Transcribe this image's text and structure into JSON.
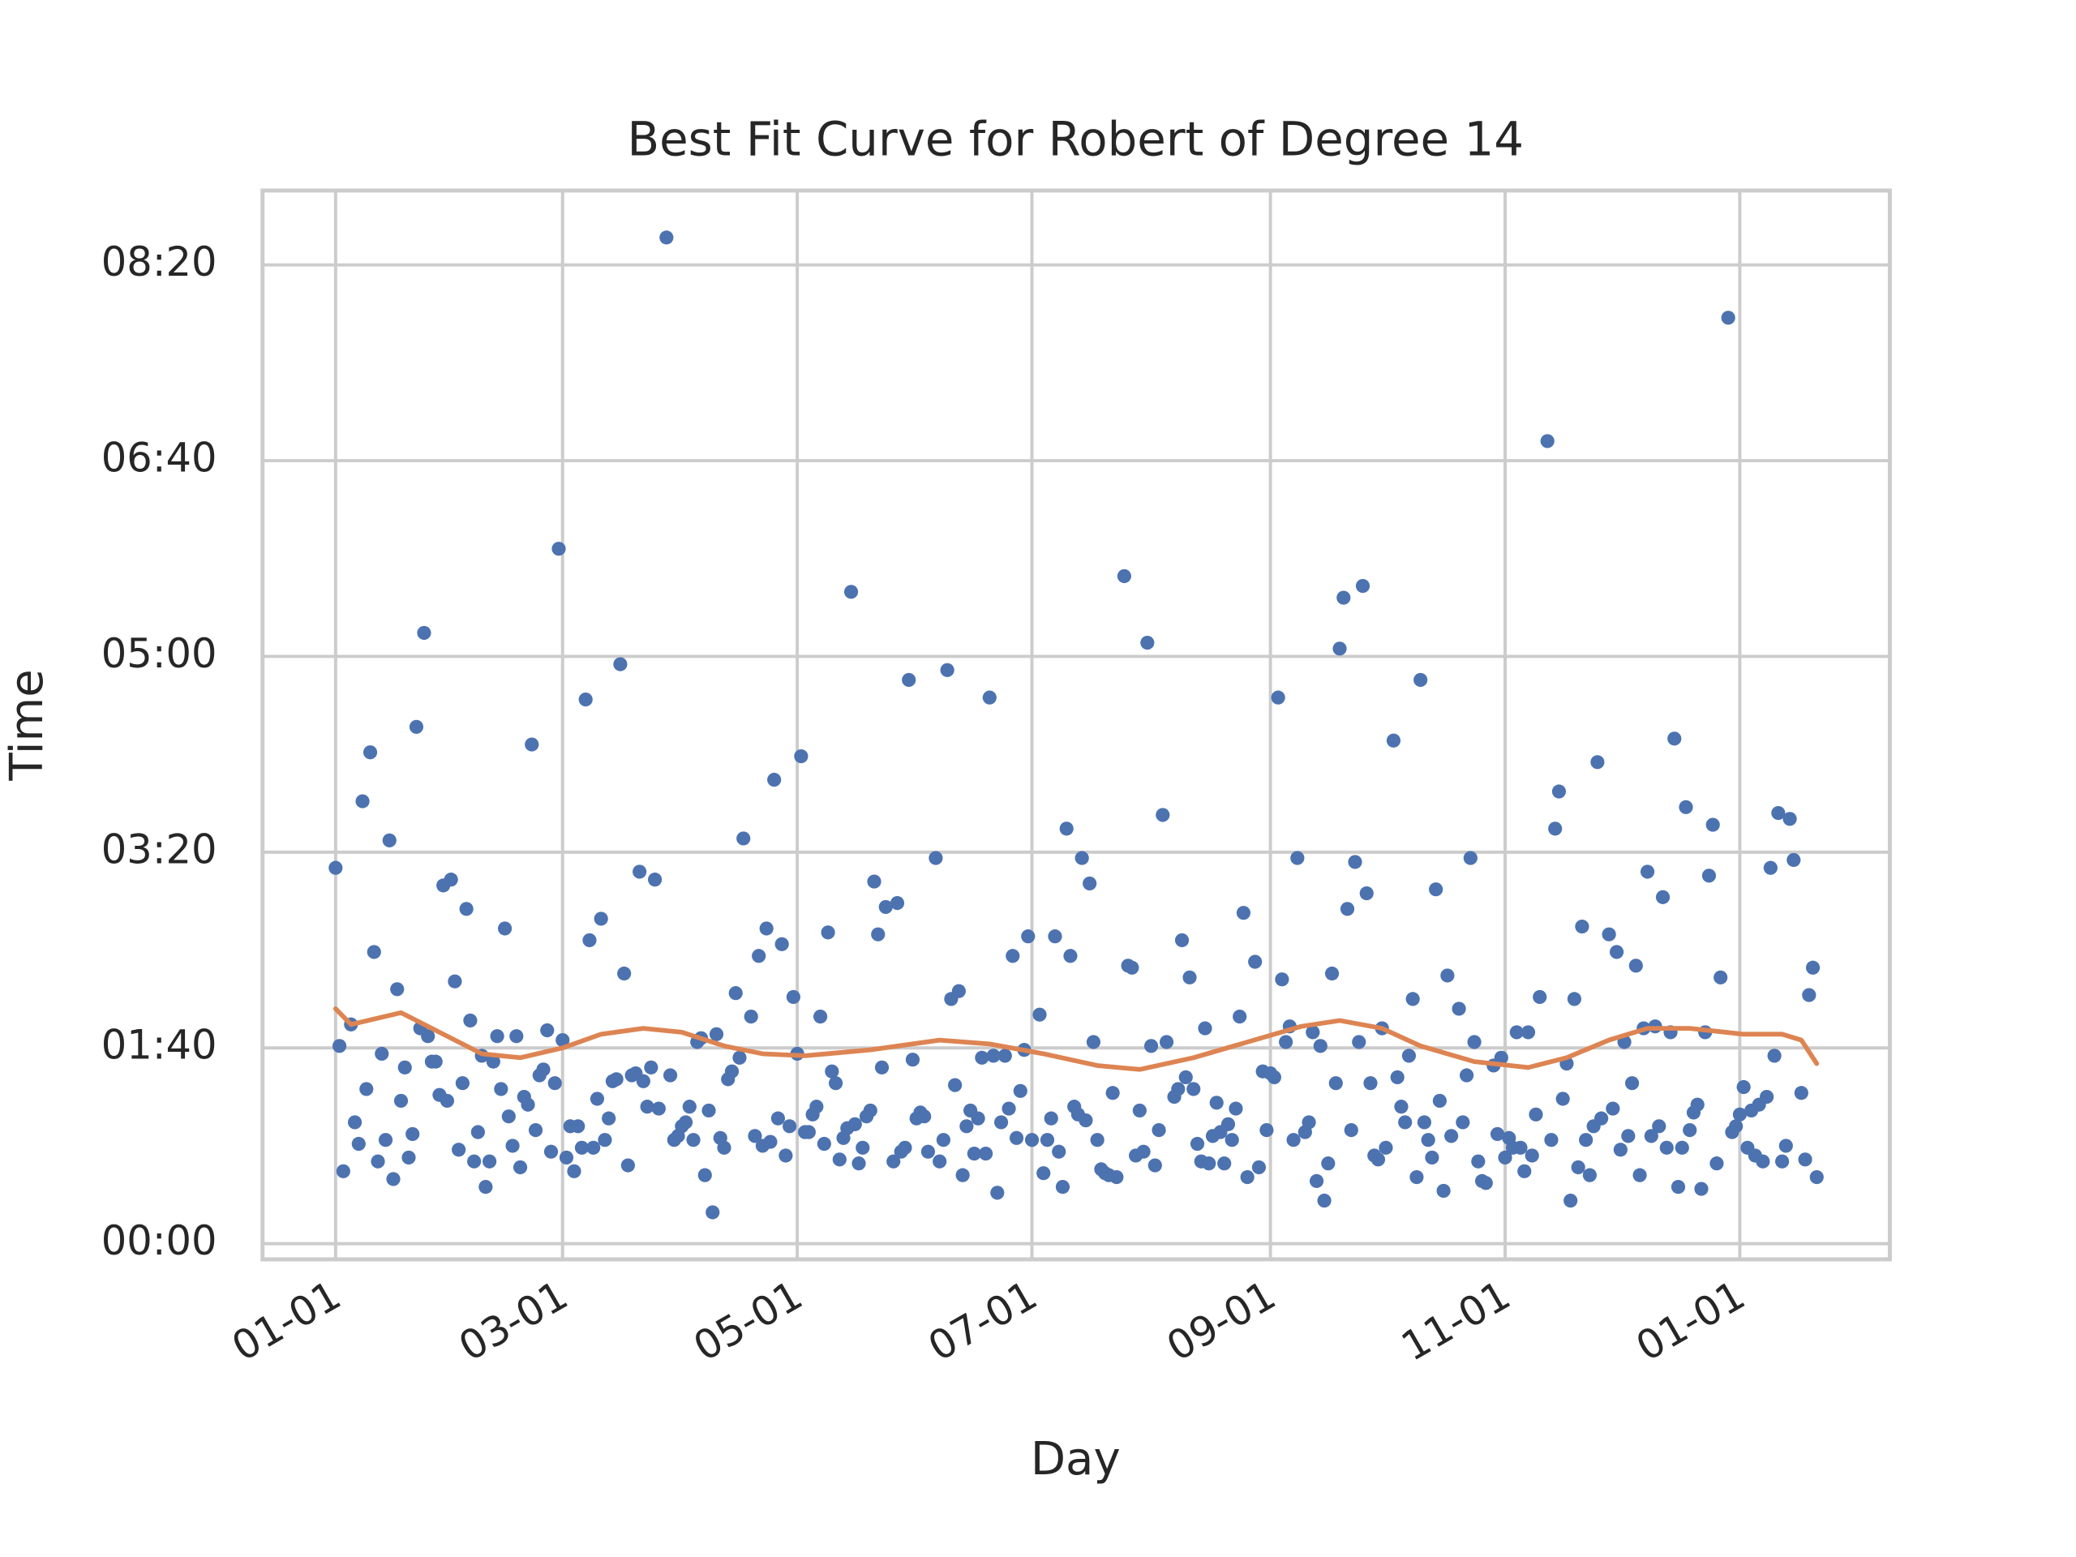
{
  "chart_data": {
    "type": "scatter",
    "title": "Best Fit Curve for Robert of Degree 14",
    "x_label": "Day",
    "y_label": "Time",
    "grid": true,
    "xlim": [
      -19,
      404
    ],
    "ylim": [
      -8,
      538
    ],
    "xticks": [
      {
        "value": 0,
        "label": "01-01"
      },
      {
        "value": 59,
        "label": "03-01"
      },
      {
        "value": 120,
        "label": "05-01"
      },
      {
        "value": 181,
        "label": "07-01"
      },
      {
        "value": 243,
        "label": "09-01"
      },
      {
        "value": 304,
        "label": "11-01"
      },
      {
        "value": 365,
        "label": "01-01"
      }
    ],
    "yticks": [
      {
        "value": 0,
        "label": "00:00"
      },
      {
        "value": 100,
        "label": "01:40"
      },
      {
        "value": 200,
        "label": "03:20"
      },
      {
        "value": 300,
        "label": "05:00"
      },
      {
        "value": 400,
        "label": "06:40"
      },
      {
        "value": 500,
        "label": "08:20"
      }
    ],
    "series": [
      {
        "type": "scatter",
        "color": "#4c72b0",
        "x": [
          0,
          1,
          2,
          4,
          5,
          6,
          7,
          8,
          9,
          10,
          11,
          12,
          13,
          14,
          15,
          16,
          17,
          18,
          19,
          20,
          21,
          22,
          23,
          24,
          25,
          26,
          27,
          28,
          29,
          30,
          31,
          32,
          33,
          34,
          35,
          36,
          37,
          38,
          39,
          40,
          41,
          42,
          43,
          44,
          45,
          46,
          47,
          48,
          49,
          50,
          51,
          52,
          53,
          54,
          55,
          56,
          57,
          58,
          59,
          60,
          61,
          62,
          63,
          64,
          65,
          66,
          67,
          68,
          69,
          70,
          71,
          72,
          73,
          74,
          75,
          76,
          77,
          78,
          79,
          80,
          81,
          82,
          83,
          84,
          86,
          87,
          88,
          89,
          90,
          91,
          92,
          93,
          94,
          95,
          96,
          97,
          98,
          99,
          100,
          101,
          102,
          103,
          104,
          105,
          106,
          108,
          109,
          110,
          111,
          112,
          113,
          114,
          115,
          116,
          117,
          118,
          119,
          120,
          121,
          122,
          123,
          124,
          125,
          126,
          127,
          128,
          129,
          130,
          131,
          132,
          133,
          134,
          135,
          136,
          137,
          138,
          139,
          140,
          141,
          142,
          143,
          145,
          146,
          147,
          148,
          149,
          150,
          151,
          152,
          153,
          154,
          156,
          157,
          158,
          159,
          160,
          161,
          162,
          163,
          164,
          165,
          166,
          167,
          168,
          169,
          170,
          171,
          172,
          173,
          174,
          175,
          176,
          177,
          178,
          179,
          180,
          181,
          183,
          184,
          185,
          186,
          187,
          188,
          189,
          190,
          191,
          192,
          193,
          194,
          195,
          196,
          197,
          198,
          199,
          200,
          201,
          202,
          203,
          205,
          206,
          207,
          208,
          209,
          210,
          211,
          212,
          213,
          214,
          215,
          216,
          218,
          219,
          220,
          221,
          222,
          223,
          224,
          225,
          226,
          227,
          228,
          229,
          230,
          231,
          232,
          233,
          234,
          235,
          236,
          237,
          239,
          240,
          241,
          242,
          243,
          244,
          245,
          246,
          247,
          248,
          249,
          250,
          252,
          253,
          254,
          255,
          256,
          257,
          258,
          259,
          260,
          261,
          262,
          263,
          264,
          265,
          266,
          267,
          268,
          269,
          270,
          271,
          272,
          273,
          275,
          276,
          277,
          278,
          279,
          280,
          281,
          282,
          283,
          284,
          285,
          286,
          287,
          288,
          289,
          290,
          292,
          293,
          294,
          295,
          296,
          297,
          298,
          299,
          301,
          302,
          303,
          304,
          305,
          306,
          307,
          308,
          309,
          310,
          311,
          312,
          313,
          315,
          316,
          317,
          318,
          319,
          320,
          321,
          322,
          323,
          324,
          325,
          326,
          327,
          328,
          329,
          331,
          332,
          333,
          334,
          335,
          336,
          337,
          338,
          339,
          340,
          341,
          342,
          343,
          344,
          345,
          346,
          347,
          348,
          349,
          350,
          351,
          352,
          353,
          354,
          355,
          356,
          357,
          358,
          359,
          360,
          362,
          363,
          364,
          365,
          366,
          367,
          368,
          369,
          370,
          371,
          372,
          373,
          374,
          375,
          376,
          377,
          378,
          379,
          381,
          382,
          383,
          384,
          385
        ],
        "values": [
          192,
          101,
          37,
          112,
          62,
          51,
          226,
          79,
          251,
          149,
          42,
          97,
          53,
          206,
          33,
          130,
          73,
          90,
          44,
          56,
          264,
          110,
          312,
          106,
          93,
          93,
          76,
          183,
          73,
          186,
          134,
          48,
          82,
          171,
          114,
          42,
          57,
          96,
          29,
          42,
          93,
          106,
          79,
          161,
          65,
          50,
          106,
          39,
          75,
          71,
          255,
          58,
          86,
          89,
          109,
          47,
          82,
          355,
          104,
          44,
          60,
          37,
          60,
          49,
          278,
          155,
          49,
          74,
          166,
          53,
          64,
          83,
          84,
          296,
          138,
          40,
          86,
          87,
          190,
          83,
          70,
          90,
          186,
          69,
          514,
          86,
          53,
          55,
          60,
          62,
          70,
          53,
          103,
          105,
          35,
          68,
          16,
          107,
          54,
          49,
          84,
          88,
          128,
          95,
          207,
          116,
          55,
          147,
          50,
          161,
          52,
          237,
          64,
          153,
          45,
          60,
          126,
          97,
          249,
          57,
          57,
          66,
          70,
          116,
          51,
          159,
          88,
          82,
          43,
          54,
          59,
          333,
          61,
          41,
          49,
          65,
          68,
          185,
          158,
          90,
          172,
          42,
          174,
          47,
          49,
          288,
          94,
          64,
          67,
          65,
          47,
          197,
          42,
          53,
          293,
          125,
          81,
          129,
          35,
          60,
          68,
          46,
          64,
          95,
          46,
          279,
          96,
          26,
          62,
          96,
          69,
          147,
          54,
          78,
          99,
          157,
          53,
          117,
          36,
          53,
          64,
          157,
          47,
          29,
          212,
          147,
          70,
          66,
          197,
          63,
          184,
          103,
          53,
          38,
          36,
          35,
          77,
          34,
          341,
          142,
          141,
          45,
          68,
          47,
          307,
          101,
          40,
          58,
          219,
          103,
          75,
          79,
          155,
          85,
          136,
          79,
          51,
          42,
          110,
          41,
          55,
          72,
          57,
          41,
          61,
          53,
          69,
          116,
          169,
          34,
          144,
          39,
          88,
          58,
          87,
          85,
          279,
          135,
          103,
          111,
          53,
          197,
          57,
          62,
          108,
          32,
          101,
          22,
          41,
          138,
          82,
          304,
          330,
          171,
          58,
          195,
          103,
          336,
          179,
          82,
          45,
          43,
          110,
          49,
          257,
          85,
          70,
          62,
          96,
          125,
          34,
          288,
          62,
          53,
          44,
          181,
          73,
          27,
          137,
          55,
          120,
          62,
          86,
          197,
          103,
          42,
          32,
          31,
          91,
          56,
          95,
          44,
          54,
          49,
          108,
          49,
          37,
          108,
          45,
          66,
          126,
          410,
          53,
          212,
          231,
          74,
          92,
          22,
          125,
          39,
          162,
          53,
          35,
          60,
          246,
          64,
          158,
          69,
          149,
          48,
          103,
          55,
          82,
          142,
          35,
          110,
          190,
          55,
          111,
          60,
          177,
          49,
          108,
          258,
          29,
          49,
          223,
          58,
          67,
          71,
          28,
          108,
          188,
          214,
          41,
          136,
          473,
          57,
          60,
          66,
          80,
          49,
          68,
          45,
          71,
          42,
          75,
          192,
          96,
          220,
          42,
          50,
          217,
          196,
          77,
          43,
          127,
          141,
          34
        ]
      },
      {
        "type": "line",
        "color": "#dd8452",
        "x": [
          0,
          4,
          17,
          27,
          38,
          48,
          59,
          69,
          80,
          90,
          101,
          111,
          122,
          139,
          157,
          170,
          184,
          198,
          209,
          223,
          237,
          251,
          261,
          272,
          282,
          296,
          310,
          320,
          331,
          341,
          352,
          366,
          376,
          381,
          385
        ],
        "values": [
          120,
          112,
          118,
          108,
          97,
          95,
          100,
          107,
          110,
          108,
          101,
          97,
          96,
          99,
          104,
          102,
          97,
          91,
          89,
          95,
          103,
          111,
          114,
          110,
          101,
          93,
          90,
          95,
          104,
          110,
          110,
          107,
          107,
          104,
          92
        ]
      }
    ]
  }
}
